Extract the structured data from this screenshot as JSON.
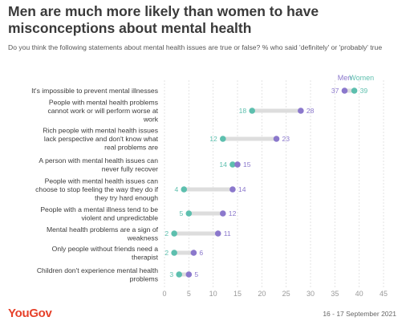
{
  "header": {
    "title": "Men are much more likely than women to have misconceptions about mental health",
    "subtitle": "Do you think the following statements about mental health issues are true or false? % who said 'definitely' or 'probably' true"
  },
  "footer": {
    "brand": "YouGov",
    "date": "16 - 17 September 2021"
  },
  "chart_data": {
    "type": "dot-range",
    "title": "Men are much more likely than women to have misconceptions about mental health",
    "subtitle": "Do you think the following statements about mental health issues are true or false? % who said 'definitely' or 'probably' true",
    "categories": [
      "It's impossible to prevent mental illnesses",
      "People with mental health problems cannot work or will perform worse at work",
      "Rich people with mental health issues lack perspective and don't know what real problems are",
      "A person with mental health issues can never fully recover",
      "People with mental health issues can choose to stop feeling the way they do if they try hard enough",
      "People with a mental illness tend to be violent and unpredictable",
      "Mental health problems are a sign of weakness",
      "Only people without friends need a therapist",
      "Children don't experience mental health problems"
    ],
    "category_lines": [
      [
        "It's impossible to prevent mental illnesses"
      ],
      [
        "People with mental health problems",
        "cannot work or will perform worse at",
        "work"
      ],
      [
        "Rich people with mental health issues",
        "lack perspective and don't know what",
        "real problems are"
      ],
      [
        "A person with mental health issues can",
        "never fully recover"
      ],
      [
        "People with mental health issues can",
        "choose to stop feeling the way they do if",
        "they try hard enough"
      ],
      [
        "People with a mental illness tend to be",
        "violent and unpredictable"
      ],
      [
        "Mental health problems are a sign of",
        "weakness"
      ],
      [
        "Only people without friends need a",
        "therapist"
      ],
      [
        "Children don't experience mental health",
        "problems"
      ]
    ],
    "series": [
      {
        "name": "Men",
        "color": "#8b78cc",
        "values": [
          37,
          28,
          23,
          15,
          14,
          12,
          11,
          6,
          5
        ]
      },
      {
        "name": "Women",
        "color": "#5dbfae",
        "values": [
          39,
          18,
          12,
          14,
          4,
          5,
          2,
          2,
          3
        ]
      }
    ],
    "x_ticks": [
      0,
      5,
      10,
      15,
      20,
      25,
      30,
      35,
      40,
      45
    ],
    "xlim": [
      0,
      45
    ],
    "grid": true,
    "legend": "top-right"
  }
}
